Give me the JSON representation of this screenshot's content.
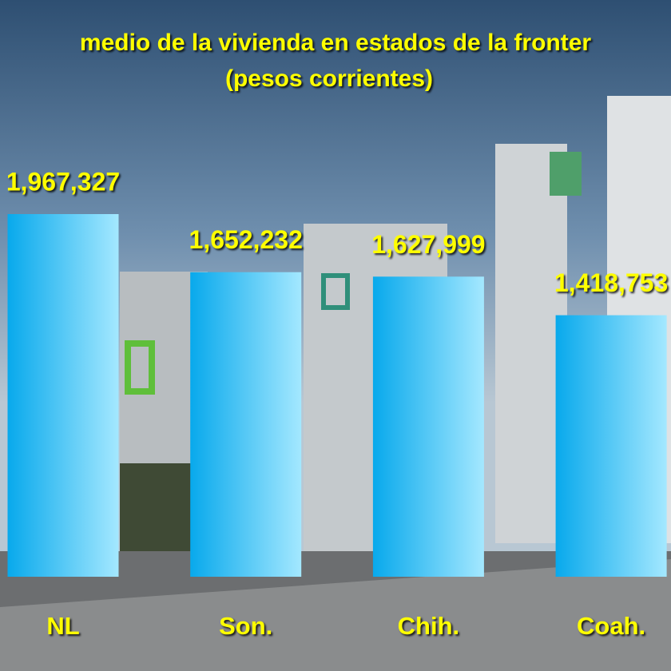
{
  "chart_data": {
    "type": "bar",
    "title": "medio de la vivienda en estados de la fronter",
    "subtitle": "(pesos corrientes)",
    "categories": [
      "NL",
      "Son.",
      "Chih.",
      "Coah."
    ],
    "values": [
      1967327,
      1652232,
      1627999,
      1418753
    ],
    "value_labels": [
      "1,967,327",
      "1,652,232",
      "1,627,999",
      "1,418,753"
    ],
    "color": "#29b8f2"
  }
}
